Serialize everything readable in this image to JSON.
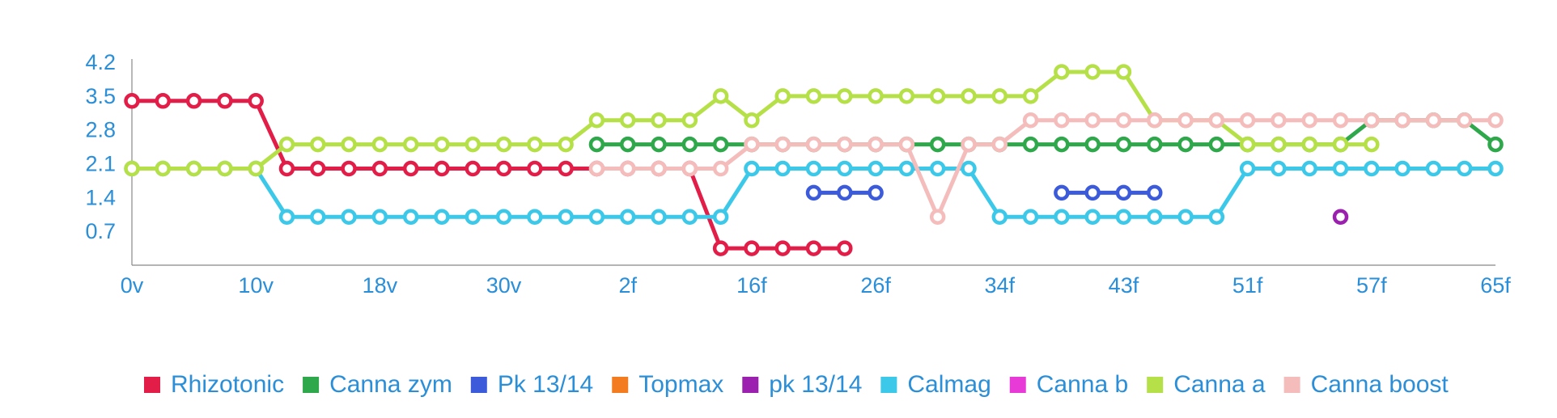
{
  "chart_data": {
    "type": "line",
    "title": "",
    "xlabel": "",
    "ylabel": "",
    "x_tick_labels": [
      "0v",
      "10v",
      "18v",
      "30v",
      "2f",
      "16f",
      "26f",
      "34f",
      "43f",
      "51f",
      "57f",
      "65f"
    ],
    "y_tick_labels": [
      "0.7",
      "1.4",
      "2.1",
      "2.8",
      "3.5",
      "4.2"
    ],
    "y_ticks": [
      0.7,
      1.4,
      2.1,
      2.8,
      3.5,
      4.2
    ],
    "ylim": [
      0,
      4.2
    ],
    "n_points": 45,
    "grid": false,
    "legend_position": "bottom",
    "series": [
      {
        "name": "Rhizotonic",
        "color": "#e11d48",
        "values": [
          3.4,
          3.4,
          3.4,
          3.4,
          3.4,
          2.0,
          2.0,
          2.0,
          2.0,
          2.0,
          2.0,
          2.0,
          2.0,
          2.0,
          2.0,
          2.0,
          2.0,
          2.0,
          2.0,
          0.35,
          0.35,
          0.35,
          0.35,
          0.35,
          null,
          null,
          null,
          null,
          null,
          null,
          null,
          null,
          null,
          null,
          null,
          null,
          null,
          null,
          null,
          null,
          null,
          null,
          null,
          null,
          null
        ]
      },
      {
        "name": "Canna zym",
        "color": "#2ea84a",
        "values": [
          null,
          null,
          null,
          null,
          null,
          null,
          null,
          null,
          null,
          null,
          null,
          null,
          null,
          null,
          null,
          2.5,
          2.5,
          2.5,
          2.5,
          2.5,
          2.5,
          2.5,
          2.5,
          2.5,
          2.5,
          2.5,
          2.5,
          2.5,
          2.5,
          2.5,
          2.5,
          2.5,
          2.5,
          2.5,
          2.5,
          2.5,
          2.5,
          2.5,
          2.5,
          2.5,
          3.0,
          3.0,
          3.0,
          3.0,
          2.5
        ]
      },
      {
        "name": "Pk 13/14",
        "color": "#3b5bdb",
        "values": [
          null,
          null,
          null,
          null,
          null,
          null,
          null,
          null,
          null,
          null,
          null,
          null,
          null,
          null,
          null,
          null,
          null,
          null,
          null,
          null,
          null,
          null,
          1.5,
          1.5,
          1.5,
          null,
          null,
          null,
          null,
          null,
          1.5,
          1.5,
          1.5,
          1.5,
          null,
          null,
          null,
          null,
          null,
          null,
          null,
          null,
          null,
          null,
          null
        ]
      },
      {
        "name": "Topmax",
        "color": "#f47c20",
        "values": []
      },
      {
        "name": "pk 13/14",
        "color": "#9b20b0",
        "values": [
          null,
          null,
          null,
          null,
          null,
          null,
          null,
          null,
          null,
          null,
          null,
          null,
          null,
          null,
          null,
          null,
          null,
          null,
          null,
          null,
          null,
          null,
          null,
          null,
          null,
          null,
          null,
          null,
          null,
          null,
          null,
          null,
          null,
          null,
          null,
          null,
          null,
          null,
          null,
          1.0,
          null,
          null,
          null,
          null,
          null
        ]
      },
      {
        "name": "Calmag",
        "color": "#3cc8e8",
        "values": [
          2.0,
          2.0,
          2.0,
          2.0,
          2.0,
          1.0,
          1.0,
          1.0,
          1.0,
          1.0,
          1.0,
          1.0,
          1.0,
          1.0,
          1.0,
          1.0,
          1.0,
          1.0,
          1.0,
          1.0,
          2.0,
          2.0,
          2.0,
          2.0,
          2.0,
          2.0,
          2.0,
          2.0,
          1.0,
          1.0,
          1.0,
          1.0,
          1.0,
          1.0,
          1.0,
          1.0,
          2.0,
          2.0,
          2.0,
          2.0,
          2.0,
          2.0,
          2.0,
          2.0,
          2.0
        ]
      },
      {
        "name": "Canna b",
        "color": "#e83ad6",
        "values": []
      },
      {
        "name": "Canna a",
        "color": "#b5e048",
        "values": [
          2.0,
          2.0,
          2.0,
          2.0,
          2.0,
          2.5,
          2.5,
          2.5,
          2.5,
          2.5,
          2.5,
          2.5,
          2.5,
          2.5,
          2.5,
          3.0,
          3.0,
          3.0,
          3.0,
          3.5,
          3.0,
          3.5,
          3.5,
          3.5,
          3.5,
          3.5,
          3.5,
          3.5,
          3.5,
          3.5,
          4.0,
          4.0,
          4.0,
          3.0,
          3.0,
          3.0,
          2.5,
          2.5,
          2.5,
          2.5,
          2.5,
          null,
          null,
          null,
          null
        ]
      },
      {
        "name": "Canna boost",
        "color": "#f5bcbc",
        "values": [
          null,
          null,
          null,
          null,
          null,
          null,
          null,
          null,
          null,
          null,
          null,
          null,
          null,
          null,
          null,
          2.0,
          2.0,
          2.0,
          2.0,
          2.0,
          2.5,
          2.5,
          2.5,
          2.5,
          2.5,
          2.5,
          1.0,
          2.5,
          2.5,
          3.0,
          3.0,
          3.0,
          3.0,
          3.0,
          3.0,
          3.0,
          3.0,
          3.0,
          3.0,
          3.0,
          3.0,
          3.0,
          3.0,
          3.0,
          3.0
        ]
      }
    ]
  }
}
